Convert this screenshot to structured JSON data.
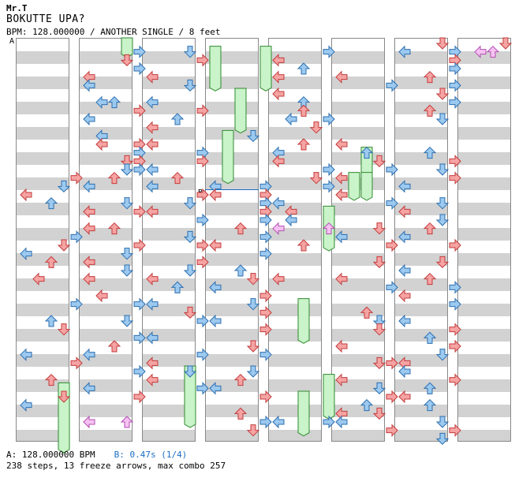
{
  "header": {
    "author": "Mr.T",
    "title": "BOKUTTE UPA?",
    "meta": "BPM: 128.000000 / ANOTHER SINGLE / 8 feet"
  },
  "markers": {
    "a": "A",
    "b": "B"
  },
  "footer": {
    "bpm_a": "A: 128.000000 BPM",
    "bpm_b": "B: 0.47s (1/4)",
    "summary": "238 steps, 13 freeze arrows, max combo 257"
  },
  "colors": {
    "red": "#f5a3a3",
    "blue": "#9cc9ef",
    "pink": "#f6c2f2",
    "green": "#c9f3c9"
  },
  "columns": [
    {
      "id": 1,
      "notes": [
        [
          "R",
          4,
          16
        ],
        [
          "D",
          3,
          17
        ],
        [
          "L",
          0,
          18
        ],
        [
          "U",
          2,
          19
        ],
        [
          "R",
          4,
          23
        ],
        [
          "D",
          3,
          24
        ],
        [
          "L",
          0,
          25
        ],
        [
          "U",
          2,
          26
        ],
        [
          "L",
          1,
          28
        ],
        [
          "R",
          4,
          31
        ],
        [
          "U",
          2,
          33
        ],
        [
          "D",
          3,
          34
        ],
        [
          "L",
          0,
          37
        ],
        [
          "R",
          4,
          38
        ],
        [
          "U",
          2,
          40
        ],
        [
          "D",
          3,
          42
        ],
        [
          "L",
          0,
          43
        ]
      ],
      "holds": [
        [
          3,
          41,
          48
        ]
      ]
    },
    {
      "id": 2,
      "notes": [
        [
          "R",
          4,
          1
        ],
        [
          "D",
          3,
          2
        ],
        [
          "R",
          4,
          3
        ],
        [
          "L",
          0,
          4
        ],
        [
          "L",
          0,
          5
        ],
        [
          "L",
          1,
          7
        ],
        [
          "U",
          2,
          7
        ],
        [
          "R",
          4,
          8
        ],
        [
          "L",
          0,
          9
        ],
        [
          "L",
          1,
          11
        ],
        [
          "L",
          1,
          12
        ],
        [
          "R",
          4,
          12
        ],
        [
          "R",
          4,
          13
        ],
        [
          "R",
          4,
          14
        ],
        [
          "D",
          3,
          14
        ],
        [
          "D",
          3,
          15
        ],
        [
          "R",
          4,
          15
        ],
        [
          "U",
          2,
          16
        ],
        [
          "L",
          0,
          17
        ],
        [
          "D",
          3,
          19
        ],
        [
          "L",
          0,
          20
        ],
        [
          "R",
          4,
          20
        ],
        [
          "L",
          0,
          22
        ],
        [
          "U",
          2,
          22
        ],
        [
          "R",
          4,
          24
        ],
        [
          "D",
          3,
          25
        ],
        [
          "L",
          0,
          26
        ],
        [
          "D",
          3,
          27
        ],
        [
          "L",
          0,
          28
        ],
        [
          "L",
          1,
          30
        ],
        [
          "R",
          4,
          31
        ],
        [
          "D",
          3,
          33
        ],
        [
          "R",
          4,
          35
        ],
        [
          "U",
          2,
          36
        ],
        [
          "L",
          0,
          37
        ],
        [
          "R",
          4,
          39
        ],
        [
          "L",
          0,
          41
        ],
        [
          "R",
          4,
          42
        ],
        [
          "P",
          0,
          45
        ],
        [
          "P",
          3,
          45
        ]
      ],
      "holds": [
        [
          3,
          0,
          1
        ]
      ]
    },
    {
      "id": 3,
      "notes": [
        [
          "D",
          3,
          1
        ],
        [
          "R",
          4,
          2
        ],
        [
          "L",
          0,
          4
        ],
        [
          "D",
          3,
          5
        ],
        [
          "L",
          0,
          7
        ],
        [
          "R",
          4,
          8
        ],
        [
          "U",
          2,
          9
        ],
        [
          "L",
          0,
          10
        ],
        [
          "L",
          0,
          12
        ],
        [
          "R",
          4,
          13
        ],
        [
          "R",
          4,
          14
        ],
        [
          "L",
          0,
          15
        ],
        [
          "U",
          2,
          16
        ],
        [
          "L",
          0,
          17
        ],
        [
          "R",
          4,
          18
        ],
        [
          "D",
          3,
          19
        ],
        [
          "L",
          0,
          20
        ],
        [
          "R",
          4,
          21
        ],
        [
          "D",
          3,
          23
        ],
        [
          "R",
          4,
          24
        ],
        [
          "R",
          4,
          26
        ],
        [
          "D",
          3,
          27
        ],
        [
          "L",
          0,
          28
        ],
        [
          "U",
          2,
          29
        ],
        [
          "L",
          0,
          31
        ],
        [
          "D",
          3,
          32
        ],
        [
          "R",
          4,
          33
        ],
        [
          "L",
          0,
          35
        ],
        [
          "R",
          4,
          37
        ],
        [
          "L",
          0,
          38
        ],
        [
          "D",
          3,
          39
        ],
        [
          "L",
          0,
          40
        ],
        [
          "R",
          4,
          41
        ]
      ],
      "holds": [
        [
          3,
          39,
          45
        ]
      ]
    },
    {
      "id": 4,
      "notes": [
        [
          "D",
          3,
          11
        ],
        [
          "L",
          0,
          17
        ],
        [
          "L",
          0,
          18
        ],
        [
          "R",
          4,
          17
        ],
        [
          "R",
          4,
          18
        ],
        [
          "R",
          4,
          19
        ],
        [
          "R",
          4,
          20
        ],
        [
          "R",
          4,
          21
        ],
        [
          "U",
          2,
          22
        ],
        [
          "R",
          4,
          23
        ],
        [
          "L",
          0,
          24
        ],
        [
          "R",
          4,
          25
        ],
        [
          "U",
          2,
          27
        ],
        [
          "D",
          3,
          28
        ],
        [
          "L",
          0,
          29
        ],
        [
          "R",
          4,
          30
        ],
        [
          "D",
          3,
          31
        ],
        [
          "R",
          4,
          32
        ],
        [
          "L",
          0,
          33
        ],
        [
          "R",
          4,
          34
        ],
        [
          "D",
          3,
          36
        ],
        [
          "R",
          4,
          37
        ],
        [
          "D",
          3,
          39
        ],
        [
          "U",
          2,
          40
        ],
        [
          "L",
          0,
          41
        ],
        [
          "R",
          4,
          42
        ],
        [
          "U",
          2,
          44
        ],
        [
          "R",
          4,
          45
        ],
        [
          "D",
          3,
          46
        ]
      ],
      "holds": [
        [
          0,
          1,
          5
        ],
        [
          4,
          1,
          5
        ],
        [
          2,
          6,
          10
        ],
        [
          1,
          11,
          16
        ]
      ]
    },
    {
      "id": 5,
      "notes": [
        [
          "R",
          4,
          1
        ],
        [
          "L",
          0,
          2
        ],
        [
          "U",
          2,
          3
        ],
        [
          "L",
          0,
          4
        ],
        [
          "L",
          0,
          6
        ],
        [
          "U",
          2,
          7
        ],
        [
          "U",
          2,
          8
        ],
        [
          "L",
          1,
          9
        ],
        [
          "R",
          4,
          9
        ],
        [
          "D",
          3,
          10
        ],
        [
          "U",
          2,
          12
        ],
        [
          "L",
          0,
          13
        ],
        [
          "L",
          0,
          14
        ],
        [
          "R",
          4,
          15
        ],
        [
          "D",
          3,
          16
        ],
        [
          "R",
          4,
          17
        ],
        [
          "L",
          0,
          19
        ],
        [
          "L",
          1,
          20
        ],
        [
          "L",
          1,
          21
        ],
        [
          "P",
          0,
          22
        ],
        [
          "P",
          4,
          22
        ],
        [
          "U",
          2,
          24
        ],
        [
          "L",
          0,
          28
        ],
        [
          "L",
          0,
          45
        ],
        [
          "R",
          4,
          45
        ]
      ],
      "holds": [
        [
          4,
          20,
          24
        ],
        [
          2,
          31,
          35
        ],
        [
          4,
          40,
          44
        ],
        [
          2,
          42,
          46
        ]
      ]
    },
    {
      "id": 6,
      "notes": [
        [
          "L",
          0,
          4
        ],
        [
          "R",
          4,
          5
        ],
        [
          "L",
          0,
          12
        ],
        [
          "U",
          2,
          13
        ],
        [
          "D",
          3,
          14
        ],
        [
          "R",
          4,
          15
        ],
        [
          "L",
          0,
          16
        ],
        [
          "L",
          0,
          18
        ],
        [
          "R",
          4,
          19
        ],
        [
          "D",
          3,
          22
        ],
        [
          "L",
          0,
          23
        ],
        [
          "R",
          4,
          24
        ],
        [
          "D",
          3,
          26
        ],
        [
          "L",
          0,
          28
        ],
        [
          "R",
          4,
          29
        ],
        [
          "U",
          2,
          32
        ],
        [
          "D",
          3,
          33
        ],
        [
          "D",
          3,
          34
        ],
        [
          "L",
          0,
          36
        ],
        [
          "D",
          3,
          38
        ],
        [
          "R",
          4,
          38
        ],
        [
          "L",
          0,
          40
        ],
        [
          "D",
          3,
          41
        ],
        [
          "R",
          4,
          42
        ],
        [
          "U",
          2,
          43
        ],
        [
          "D",
          3,
          44
        ],
        [
          "L",
          0,
          44
        ],
        [
          "L",
          0,
          45
        ],
        [
          "R",
          4,
          46
        ]
      ],
      "holds": [
        [
          2,
          13,
          15
        ],
        [
          1,
          16,
          18
        ],
        [
          2,
          16,
          18
        ]
      ]
    },
    {
      "id": 7,
      "notes": [
        [
          "D",
          3,
          0
        ],
        [
          "L",
          0,
          1
        ],
        [
          "R",
          4,
          1
        ],
        [
          "R",
          4,
          2
        ],
        [
          "R",
          4,
          3
        ],
        [
          "U",
          2,
          4
        ],
        [
          "R",
          4,
          5
        ],
        [
          "D",
          3,
          6
        ],
        [
          "R",
          4,
          7
        ],
        [
          "U",
          2,
          8
        ],
        [
          "D",
          3,
          9
        ],
        [
          "U",
          2,
          13
        ],
        [
          "R",
          4,
          14
        ],
        [
          "D",
          3,
          15
        ],
        [
          "R",
          4,
          16
        ],
        [
          "L",
          0,
          17
        ],
        [
          "D",
          3,
          19
        ],
        [
          "L",
          0,
          20
        ],
        [
          "D",
          3,
          21
        ],
        [
          "U",
          2,
          22
        ],
        [
          "L",
          0,
          23
        ],
        [
          "R",
          4,
          24
        ],
        [
          "D",
          3,
          26
        ],
        [
          "L",
          0,
          27
        ],
        [
          "U",
          2,
          28
        ],
        [
          "R",
          4,
          29
        ],
        [
          "L",
          0,
          30
        ],
        [
          "R",
          4,
          31
        ],
        [
          "L",
          0,
          33
        ],
        [
          "R",
          4,
          34
        ],
        [
          "U",
          2,
          35
        ],
        [
          "R",
          4,
          36
        ],
        [
          "D",
          3,
          37
        ],
        [
          "L",
          0,
          38
        ],
        [
          "L",
          0,
          39
        ],
        [
          "R",
          4,
          40
        ],
        [
          "U",
          2,
          41
        ],
        [
          "L",
          0,
          42
        ],
        [
          "U",
          2,
          43
        ],
        [
          "D",
          3,
          45
        ],
        [
          "R",
          4,
          46
        ],
        [
          "D",
          3,
          47
        ]
      ],
      "holds": []
    },
    {
      "id": 8,
      "notes": [
        [
          "D",
          3,
          0
        ],
        [
          "P",
          1,
          1
        ],
        [
          "P",
          2,
          1
        ]
      ],
      "holds": []
    }
  ]
}
